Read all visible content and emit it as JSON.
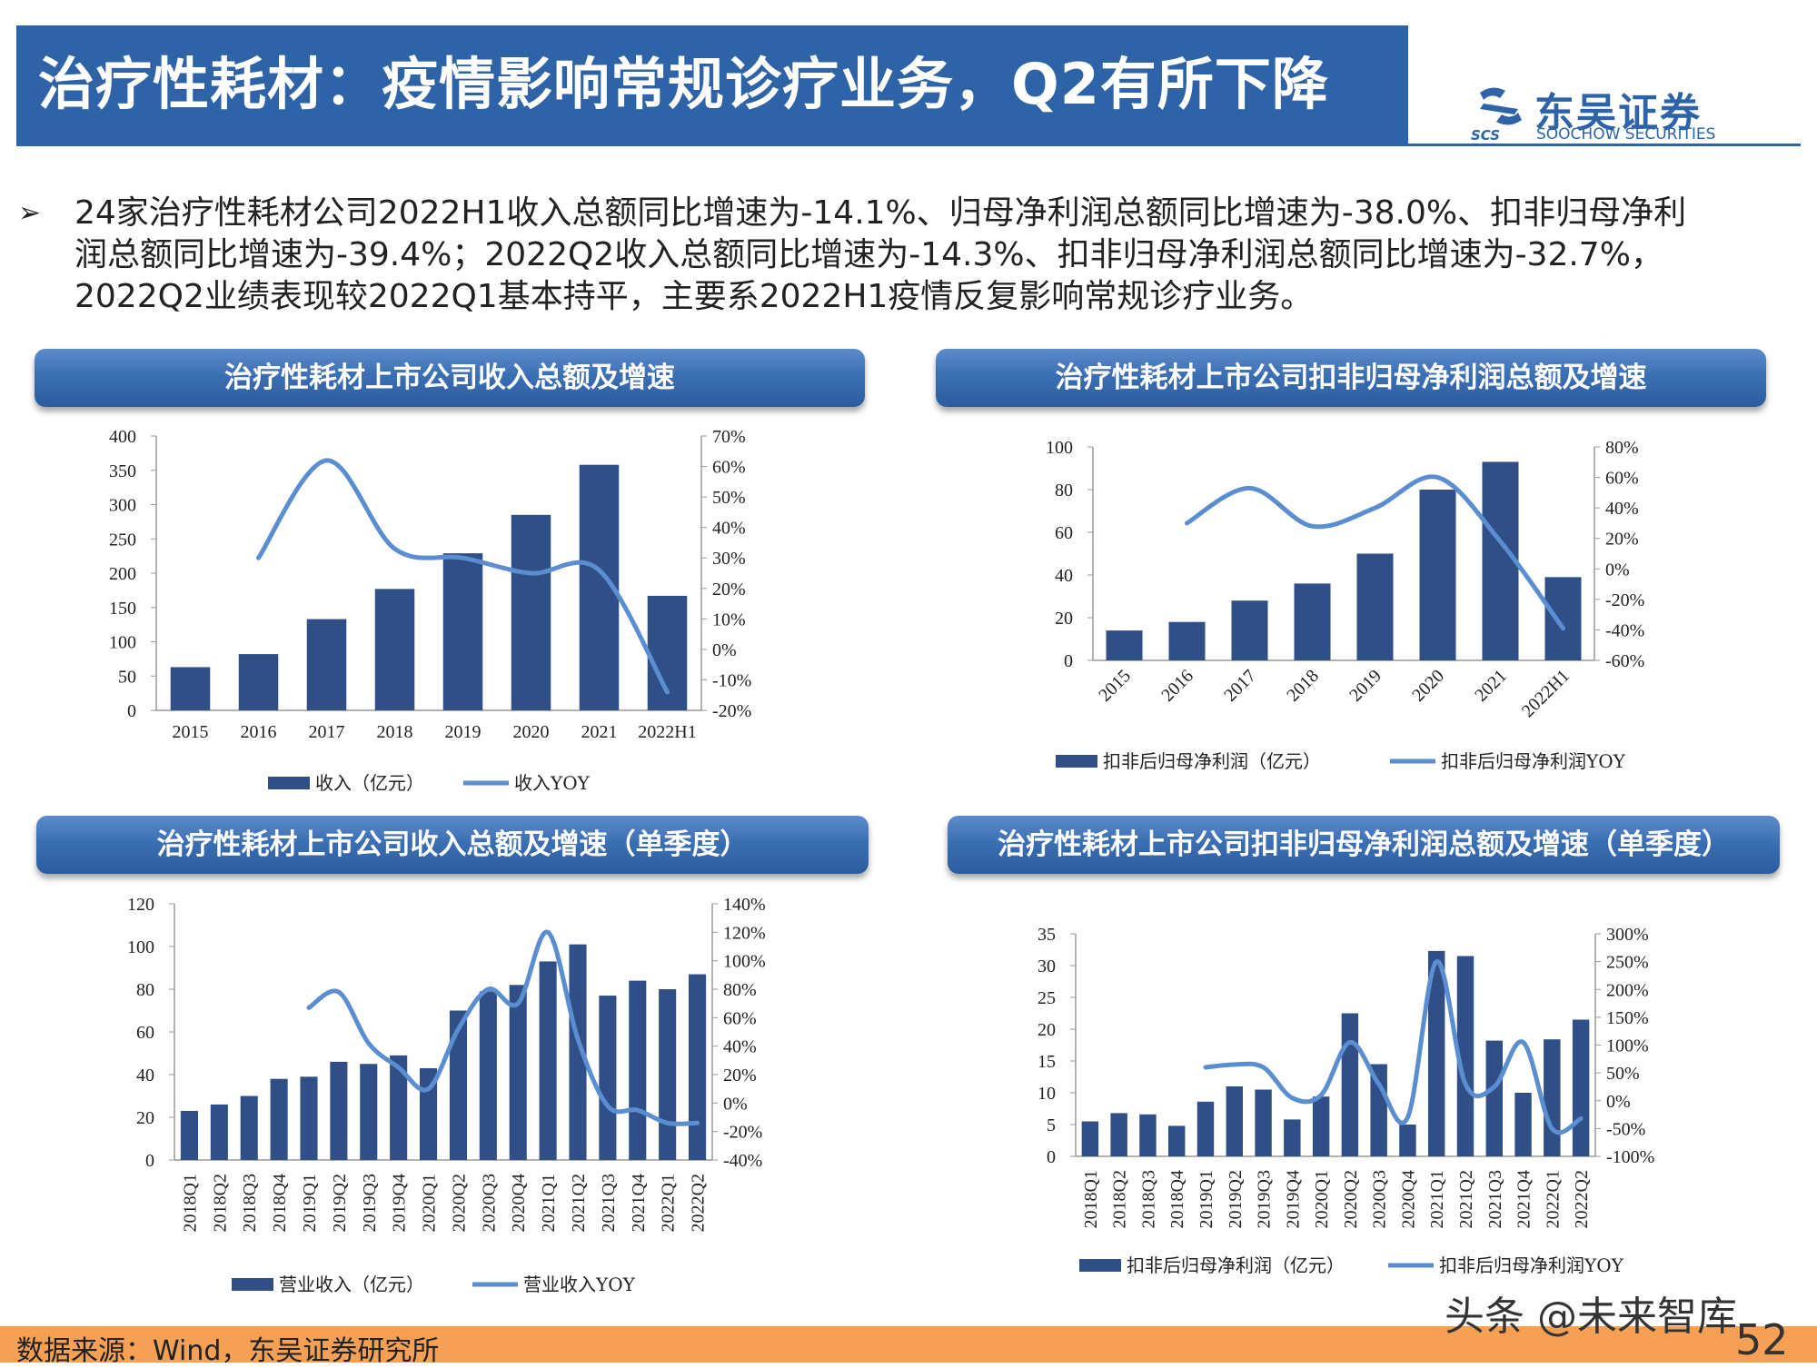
{
  "header": {
    "title": "治疗性耗材：疫情影响常规诊疗业务，Q2有所下降",
    "logo_cn": "东吴证券",
    "logo_en": "SOOCHOW SECURITIES",
    "logo_abbr": "SCS"
  },
  "bullet": {
    "marker": "➢",
    "lines": [
      "24家治疗性耗材公司2022H1收入总额同比增速为-14.1%、归母净利润总额同比增速为-38.0%、扣非归母净利",
      "润总额同比增速为-39.4%；2022Q2收入总额同比增速为-14.3%、扣非归母净利润总额同比增速为-32.7%，",
      "2022Q2业绩表现较2022Q1基本持平，主要系2022H1疫情反复影响常规诊疗业务。"
    ]
  },
  "panels": {
    "p1_title": "治疗性耗材上市公司收入总额及增速",
    "p2_title": "治疗性耗材上市公司扣非归母净利润总额及增速",
    "p3_title": "治疗性耗材上市公司收入总额及增速（单季度）",
    "p4_title": "治疗性耗材上市公司扣非归母净利润总额及增速（单季度）"
  },
  "colors": {
    "bar": "#2f4f86",
    "line": "#5b8ed0",
    "title": "#2e63a8",
    "footer": "#f5a054"
  },
  "chart_data": [
    {
      "type": "bar",
      "categories": [
        "2015",
        "2016",
        "2017",
        "2018",
        "2019",
        "2020",
        "2021",
        "2022H1"
      ],
      "series": [
        {
          "name": "收入（亿元）",
          "axis": "left",
          "values": [
            63,
            82,
            133,
            177,
            229,
            285,
            358,
            167
          ]
        },
        {
          "name": "收入YOY",
          "axis": "right",
          "kind": "line",
          "values": [
            null,
            0.3,
            0.62,
            0.33,
            0.3,
            0.25,
            0.26,
            -0.14
          ]
        }
      ],
      "left_ticks": [
        "0",
        "50",
        "100",
        "150",
        "200",
        "250",
        "300",
        "350",
        "400"
      ],
      "right_ticks": [
        "-20%",
        "-10%",
        "0%",
        "10%",
        "20%",
        "30%",
        "40%",
        "50%",
        "60%",
        "70%"
      ],
      "ylim": [
        0,
        400
      ],
      "y2lim": [
        -0.2,
        0.7
      ],
      "legend": "bottom"
    },
    {
      "type": "bar",
      "categories": [
        "2015",
        "2016",
        "2017",
        "2018",
        "2019",
        "2020",
        "2021",
        "2022H1"
      ],
      "series": [
        {
          "name": "扣非后归母净利润（亿元）",
          "axis": "left",
          "values": [
            14,
            18,
            28,
            36,
            50,
            80,
            93,
            39
          ]
        },
        {
          "name": "扣非后归母净利润YOY",
          "axis": "right",
          "kind": "line",
          "values": [
            null,
            0.3,
            0.53,
            0.28,
            0.4,
            0.6,
            0.18,
            -0.39
          ]
        }
      ],
      "left_ticks": [
        "0",
        "20",
        "40",
        "60",
        "80",
        "100"
      ],
      "right_ticks": [
        "-60%",
        "-40%",
        "-20%",
        "0%",
        "20%",
        "40%",
        "60%",
        "80%"
      ],
      "ylim": [
        0,
        100
      ],
      "y2lim": [
        -0.6,
        0.8
      ],
      "legend": "bottom"
    },
    {
      "type": "bar",
      "categories": [
        "2018Q1",
        "2018Q2",
        "2018Q3",
        "2018Q4",
        "2019Q1",
        "2019Q2",
        "2019Q3",
        "2019Q4",
        "2020Q1",
        "2020Q2",
        "2020Q3",
        "2020Q4",
        "2021Q1",
        "2021Q2",
        "2021Q3",
        "2021Q4",
        "2022Q1",
        "2022Q2"
      ],
      "series": [
        {
          "name": "营业收入（亿元）",
          "axis": "left",
          "values": [
            23,
            26,
            30,
            38,
            39,
            46,
            45,
            49,
            43,
            70,
            79,
            82,
            93,
            101,
            77,
            84,
            80,
            87
          ]
        },
        {
          "name": "营业收入YOY",
          "axis": "right",
          "kind": "line",
          "values": [
            null,
            null,
            null,
            null,
            0.67,
            0.78,
            0.42,
            0.25,
            0.1,
            0.52,
            0.8,
            0.7,
            1.2,
            0.45,
            -0.02,
            -0.05,
            -0.14,
            -0.14
          ]
        }
      ],
      "left_ticks": [
        "0",
        "20",
        "40",
        "60",
        "80",
        "100",
        "120"
      ],
      "right_ticks": [
        "-40%",
        "-20%",
        "0%",
        "20%",
        "40%",
        "60%",
        "80%",
        "100%",
        "120%",
        "140%"
      ],
      "ylim": [
        0,
        120
      ],
      "y2lim": [
        -0.4,
        1.4
      ],
      "legend": "bottom"
    },
    {
      "type": "bar",
      "categories": [
        "2018Q1",
        "2018Q2",
        "2018Q3",
        "2018Q4",
        "2019Q1",
        "2019Q2",
        "2019Q3",
        "2019Q4",
        "2020Q1",
        "2020Q2",
        "2020Q3",
        "2020Q4",
        "2021Q1",
        "2021Q2",
        "2021Q3",
        "2021Q4",
        "2022Q1",
        "2022Q2"
      ],
      "series": [
        {
          "name": "扣非后归母净利润（亿元）",
          "axis": "left",
          "values": [
            5.5,
            6.8,
            6.6,
            4.8,
            8.6,
            11.0,
            10.5,
            5.8,
            9.4,
            22.5,
            14.5,
            5.0,
            32.3,
            31.5,
            18.2,
            10.0,
            18.4,
            21.5
          ]
        },
        {
          "name": "扣非后归母净利润YOY",
          "axis": "right",
          "kind": "line",
          "values": [
            null,
            null,
            null,
            null,
            0.6,
            0.65,
            0.6,
            0.05,
            0.1,
            1.05,
            0.3,
            -0.3,
            2.5,
            0.3,
            0.25,
            1.05,
            -0.5,
            -0.32
          ]
        }
      ],
      "left_ticks": [
        "0",
        "5",
        "10",
        "15",
        "20",
        "25",
        "30",
        "35"
      ],
      "right_ticks": [
        "-100%",
        "-50%",
        "0%",
        "50%",
        "100%",
        "150%",
        "200%",
        "250%",
        "300%"
      ],
      "ylim": [
        0,
        35
      ],
      "y2lim": [
        -1.0,
        3.0
      ],
      "legend": "bottom"
    }
  ],
  "footer": {
    "source": "数据来源：Wind，东吴证券研究所",
    "watermark": "头条 @未来智库",
    "page": "52"
  }
}
